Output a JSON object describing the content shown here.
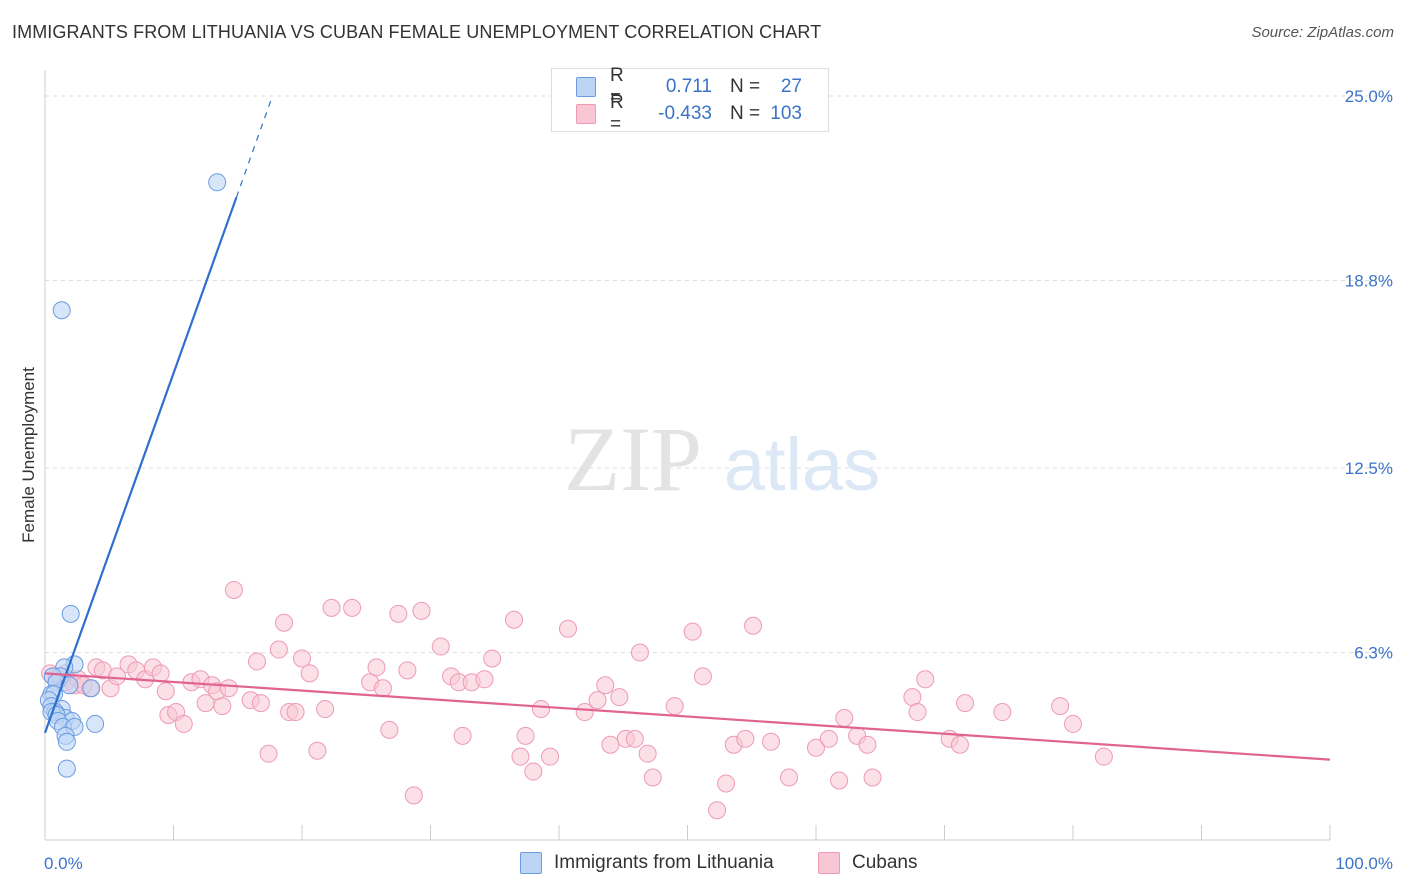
{
  "header": {
    "title": "IMMIGRANTS FROM LITHUANIA VS CUBAN FEMALE UNEMPLOYMENT CORRELATION CHART",
    "source": "Source: ZipAtlas.com"
  },
  "watermark": {
    "zip": "ZIP",
    "atlas": "atlas"
  },
  "legend": {
    "series1": {
      "r_label": "R =",
      "r_value": "0.711",
      "n_label": "N =",
      "n_value": "27"
    },
    "series2": {
      "r_label": "R =",
      "r_value": "-0.433",
      "n_label": "N =",
      "n_value": "103"
    }
  },
  "colors": {
    "blue_fill": "#bcd5f5",
    "blue_stroke": "#6b9be0",
    "blue_line": "#2f6fd0",
    "pink_fill": "#f8c6d5",
    "pink_stroke": "#ee9ab5",
    "pink_line": "#e0648f",
    "tick_text": "#3b73c9"
  },
  "chart_data": {
    "type": "scatter",
    "title": "IMMIGRANTS FROM LITHUANIA VS CUBAN FEMALE UNEMPLOYMENT CORRELATION CHART",
    "xlabel": "",
    "ylabel": "Female Unemployment",
    "xlim": [
      0,
      100
    ],
    "ylim": [
      0,
      25.7
    ],
    "x_tick_labels": {
      "min": "0.0%",
      "max": "100.0%"
    },
    "y_ticks": [
      {
        "value": 6.3,
        "label": "6.3%"
      },
      {
        "value": 12.5,
        "label": "12.5%"
      },
      {
        "value": 18.8,
        "label": "18.8%"
      },
      {
        "value": 25.0,
        "label": "25.0%"
      }
    ],
    "grid": true,
    "legend_position": "top-center",
    "series": [
      {
        "name": "Immigrants from Lithuania",
        "color": "#6b9be0",
        "r": 0.711,
        "n": 27,
        "trend": {
          "x0": 0.0,
          "y0": 3.6,
          "x1": 14.9,
          "y1": 21.6,
          "dash_to_x": 17.7,
          "dash_to_y": 25.0
        },
        "points": [
          [
            13.4,
            22.1
          ],
          [
            1.3,
            17.8
          ],
          [
            2.0,
            7.6
          ],
          [
            2.3,
            5.9
          ],
          [
            1.5,
            5.8
          ],
          [
            1.2,
            5.5
          ],
          [
            0.6,
            5.5
          ],
          [
            0.9,
            5.3
          ],
          [
            1.9,
            5.2
          ],
          [
            3.6,
            5.1
          ],
          [
            0.5,
            4.9
          ],
          [
            0.7,
            4.9
          ],
          [
            0.3,
            4.7
          ],
          [
            0.5,
            4.5
          ],
          [
            1.3,
            4.4
          ],
          [
            0.8,
            4.3
          ],
          [
            1.6,
            4.1
          ],
          [
            0.5,
            4.3
          ],
          [
            0.9,
            4.2
          ],
          [
            2.1,
            4.0
          ],
          [
            1.0,
            4.0
          ],
          [
            1.4,
            3.8
          ],
          [
            2.3,
            3.8
          ],
          [
            3.9,
            3.9
          ],
          [
            1.6,
            3.5
          ],
          [
            1.7,
            3.3
          ],
          [
            1.7,
            2.4
          ]
        ]
      },
      {
        "name": "Cubans",
        "color": "#ee9ab5",
        "r": -0.433,
        "n": 103,
        "trend": {
          "x0": 0.0,
          "y0": 5.6,
          "x1": 100.0,
          "y1": 2.7
        },
        "points": [
          [
            0.4,
            5.6
          ],
          [
            0.9,
            5.5
          ],
          [
            1.2,
            5.4
          ],
          [
            1.6,
            5.3
          ],
          [
            2.3,
            5.2
          ],
          [
            3.5,
            5.1
          ],
          [
            1.6,
            5.6
          ],
          [
            2.6,
            5.4
          ],
          [
            3.0,
            5.2
          ],
          [
            4.0,
            5.8
          ],
          [
            4.5,
            5.7
          ],
          [
            5.1,
            5.1
          ],
          [
            5.6,
            5.5
          ],
          [
            6.5,
            5.9
          ],
          [
            7.1,
            5.7
          ],
          [
            7.8,
            5.4
          ],
          [
            8.4,
            5.8
          ],
          [
            9.0,
            5.6
          ],
          [
            9.4,
            5.0
          ],
          [
            9.6,
            4.2
          ],
          [
            10.2,
            4.3
          ],
          [
            10.8,
            3.9
          ],
          [
            11.4,
            5.3
          ],
          [
            12.1,
            5.4
          ],
          [
            12.5,
            4.6
          ],
          [
            13.0,
            5.2
          ],
          [
            13.4,
            5.0
          ],
          [
            13.8,
            4.5
          ],
          [
            14.3,
            5.1
          ],
          [
            14.7,
            8.4
          ],
          [
            16.0,
            4.7
          ],
          [
            16.5,
            6.0
          ],
          [
            16.8,
            4.6
          ],
          [
            17.4,
            2.9
          ],
          [
            18.2,
            6.4
          ],
          [
            18.6,
            7.3
          ],
          [
            19.0,
            4.3
          ],
          [
            19.5,
            4.3
          ],
          [
            20.0,
            6.1
          ],
          [
            20.6,
            5.6
          ],
          [
            21.2,
            3.0
          ],
          [
            21.8,
            4.4
          ],
          [
            22.3,
            7.8
          ],
          [
            23.9,
            7.8
          ],
          [
            25.3,
            5.3
          ],
          [
            25.8,
            5.8
          ],
          [
            26.3,
            5.1
          ],
          [
            26.8,
            3.7
          ],
          [
            27.5,
            7.6
          ],
          [
            28.2,
            5.7
          ],
          [
            28.7,
            1.5
          ],
          [
            29.3,
            7.7
          ],
          [
            30.8,
            6.5
          ],
          [
            31.6,
            5.5
          ],
          [
            32.2,
            5.3
          ],
          [
            32.5,
            3.5
          ],
          [
            33.2,
            5.3
          ],
          [
            34.2,
            5.4
          ],
          [
            34.8,
            6.1
          ],
          [
            36.5,
            7.4
          ],
          [
            37.0,
            2.8
          ],
          [
            37.4,
            3.5
          ],
          [
            38.0,
            2.3
          ],
          [
            38.6,
            4.4
          ],
          [
            39.3,
            2.8
          ],
          [
            40.7,
            7.1
          ],
          [
            42.0,
            4.3
          ],
          [
            43.0,
            4.7
          ],
          [
            43.6,
            5.2
          ],
          [
            44.0,
            3.2
          ],
          [
            44.7,
            4.8
          ],
          [
            45.2,
            3.4
          ],
          [
            45.9,
            3.4
          ],
          [
            46.3,
            6.3
          ],
          [
            46.9,
            2.9
          ],
          [
            47.3,
            2.1
          ],
          [
            49.0,
            4.5
          ],
          [
            50.4,
            7.0
          ],
          [
            51.2,
            5.5
          ],
          [
            52.3,
            1.0
          ],
          [
            53.0,
            1.9
          ],
          [
            53.6,
            3.2
          ],
          [
            54.5,
            3.4
          ],
          [
            55.1,
            7.2
          ],
          [
            56.5,
            3.3
          ],
          [
            57.9,
            2.1
          ],
          [
            60.0,
            3.1
          ],
          [
            61.0,
            3.4
          ],
          [
            61.8,
            2.0
          ],
          [
            62.2,
            4.1
          ],
          [
            63.2,
            3.5
          ],
          [
            64.0,
            3.2
          ],
          [
            64.4,
            2.1
          ],
          [
            67.5,
            4.8
          ],
          [
            67.9,
            4.3
          ],
          [
            68.5,
            5.4
          ],
          [
            70.4,
            3.4
          ],
          [
            71.2,
            3.2
          ],
          [
            71.6,
            4.6
          ],
          [
            74.5,
            4.3
          ],
          [
            79.0,
            4.5
          ],
          [
            80.0,
            3.9
          ],
          [
            82.4,
            2.8
          ]
        ]
      }
    ]
  },
  "bottom_legend": {
    "item1": "Immigrants from Lithuania",
    "item2": "Cubans"
  }
}
